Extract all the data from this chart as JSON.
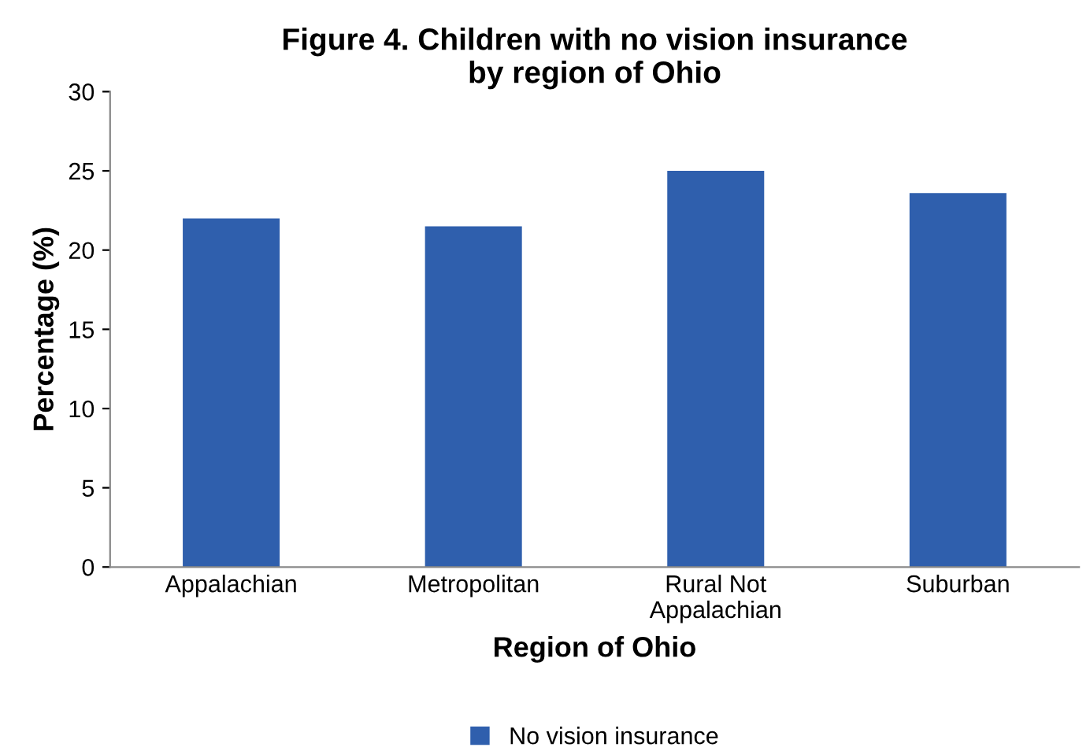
{
  "chart_data": {
    "type": "bar",
    "title": "Figure 4. Children with no vision insurance\nby region of Ohio",
    "xlabel": "Region of Ohio",
    "ylabel": "Percentage (%)",
    "categories": [
      "Appalachian",
      "Metropolitan",
      "Rural Not\nAppalachian",
      "Suburban"
    ],
    "series": [
      {
        "name": "No vision insurance",
        "color": "#2f5fad",
        "values": [
          22.0,
          21.5,
          25.0,
          23.6
        ]
      }
    ],
    "ylim": [
      0,
      30
    ],
    "yticks": [
      0,
      5,
      10,
      15,
      20,
      25,
      30
    ],
    "grid": false,
    "legend": "bottom"
  }
}
